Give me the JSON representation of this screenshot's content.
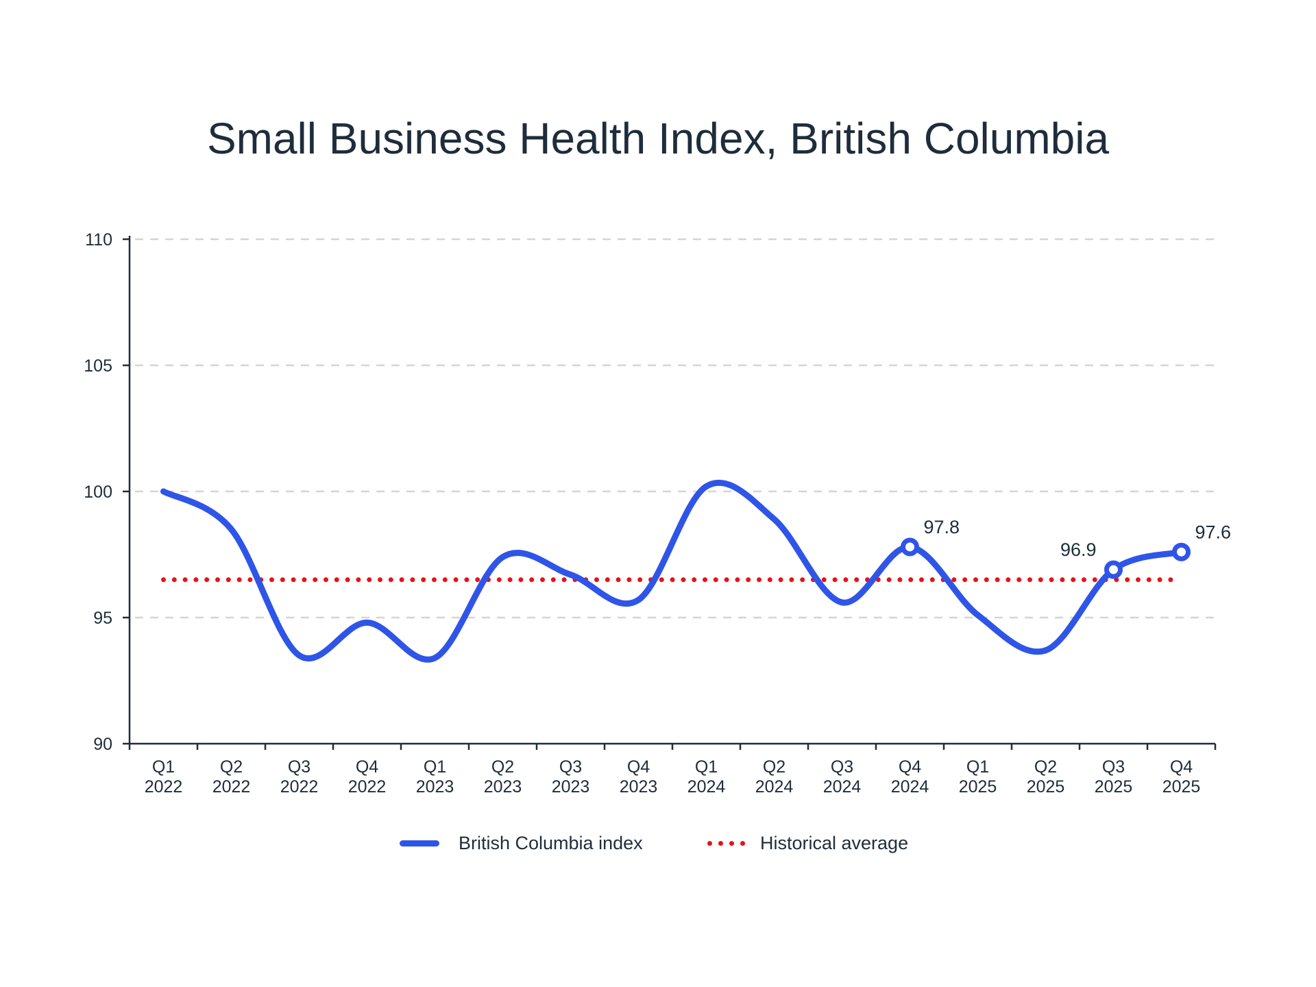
{
  "chart_data": {
    "type": "line",
    "title": "Small Business Health Index, British Columbia",
    "xlabel": "",
    "ylabel": "",
    "ylim": [
      90,
      110
    ],
    "yticks": [
      90,
      95,
      100,
      105,
      110
    ],
    "grid": true,
    "legend_position": "bottom",
    "categories": [
      [
        "Q1",
        "2022"
      ],
      [
        "Q2",
        "2022"
      ],
      [
        "Q3",
        "2022"
      ],
      [
        "Q4",
        "2022"
      ],
      [
        "Q1",
        "2023"
      ],
      [
        "Q2",
        "2023"
      ],
      [
        "Q3",
        "2023"
      ],
      [
        "Q4",
        "2023"
      ],
      [
        "Q1",
        "2024"
      ],
      [
        "Q2",
        "2024"
      ],
      [
        "Q3",
        "2024"
      ],
      [
        "Q4",
        "2024"
      ],
      [
        "Q1",
        "2025"
      ],
      [
        "Q2",
        "2025"
      ],
      [
        "Q3",
        "2025"
      ],
      [
        "Q4",
        "2025"
      ]
    ],
    "series": [
      {
        "name": "British Columbia index",
        "color": "#2f55e8",
        "values": [
          100.0,
          98.5,
          93.5,
          94.8,
          93.4,
          97.4,
          96.7,
          95.7,
          100.2,
          98.9,
          95.6,
          97.8,
          95.1,
          93.7,
          96.9,
          97.6
        ]
      },
      {
        "name": "Historical average",
        "color": "#e8111a",
        "style": "dotted",
        "values": [
          96.5,
          96.5,
          96.5,
          96.5,
          96.5,
          96.5,
          96.5,
          96.5,
          96.5,
          96.5,
          96.5,
          96.5,
          96.5,
          96.5,
          96.5,
          96.5
        ]
      }
    ],
    "annotations": [
      {
        "index": 11,
        "label": "97.8"
      },
      {
        "index": 14,
        "label": "96.9"
      },
      {
        "index": 15,
        "label": "97.6"
      }
    ]
  }
}
